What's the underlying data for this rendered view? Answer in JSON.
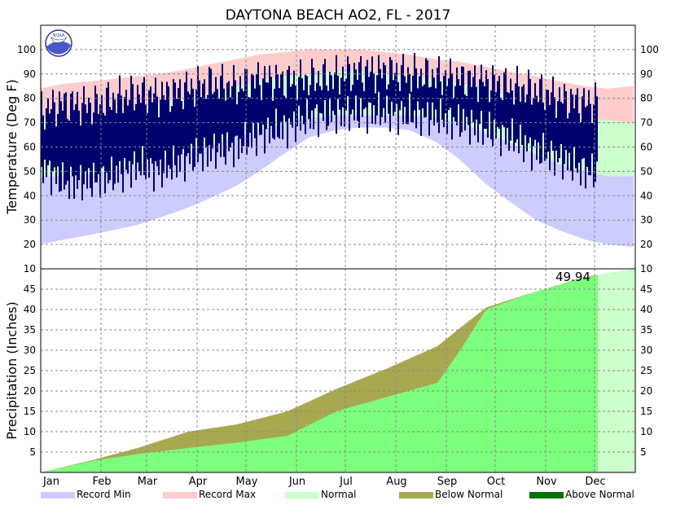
{
  "chart_data": [
    {
      "type": "area",
      "title": "DAYTONA BEACH AO2, FL - 2017",
      "ylabel": "Temperature (Deg F)",
      "ylim": [
        10,
        110
      ],
      "yticks": [
        20,
        30,
        40,
        50,
        60,
        70,
        80,
        90,
        100
      ],
      "months": [
        "Jan",
        "Feb",
        "Mar",
        "Apr",
        "May",
        "Jun",
        "Jul",
        "Aug",
        "Sep",
        "Oct",
        "Nov",
        "Dec"
      ],
      "grid": true,
      "x": [
        1,
        15,
        32,
        46,
        60,
        74,
        91,
        105,
        121,
        135,
        152,
        166,
        182,
        196,
        213,
        227,
        244,
        258,
        274,
        288,
        305,
        319,
        335,
        349,
        365
      ],
      "series": [
        {
          "name": "Record Max",
          "values": [
            84,
            86,
            87,
            88,
            89,
            90,
            92,
            94,
            96,
            98,
            99,
            100,
            100,
            100,
            99,
            98,
            96,
            95,
            93,
            91,
            89,
            87,
            85,
            84,
            85
          ]
        },
        {
          "name": "Normal",
          "values": [
            71,
            71,
            72,
            74,
            76,
            78,
            80,
            82,
            85,
            87,
            89,
            90,
            91,
            91,
            90,
            89,
            88,
            86,
            84,
            81,
            78,
            75,
            72,
            71,
            70
          ]
        },
        {
          "name": "Normal",
          "values": [
            48,
            48,
            49,
            51,
            53,
            55,
            58,
            61,
            64,
            67,
            70,
            72,
            73,
            73,
            73,
            73,
            72,
            70,
            66,
            62,
            57,
            53,
            50,
            48,
            48
          ]
        },
        {
          "name": "Record Min",
          "values": [
            20,
            22,
            24,
            26,
            28,
            31,
            35,
            39,
            44,
            50,
            58,
            64,
            67,
            68,
            68,
            67,
            62,
            55,
            45,
            38,
            30,
            26,
            22,
            20,
            19
          ]
        },
        {
          "name": "Observed High",
          "values": [
            75,
            78,
            77,
            80,
            82,
            81,
            84,
            86,
            85,
            88,
            87,
            88,
            89,
            91,
            91,
            90,
            89,
            88,
            87,
            85,
            83,
            80,
            78,
            80,
            72
          ]
        },
        {
          "name": "Observed Low",
          "values": [
            52,
            45,
            46,
            48,
            52,
            50,
            55,
            58,
            60,
            65,
            68,
            72,
            73,
            74,
            74,
            73,
            72,
            70,
            67,
            64,
            58,
            55,
            50,
            48,
            42
          ]
        }
      ]
    },
    {
      "type": "area",
      "ylabel": "Precipitation (Inches)",
      "ylim": [
        0,
        50
      ],
      "yticks": [
        5,
        10,
        15,
        20,
        25,
        30,
        35,
        40,
        45,
        50
      ],
      "top_label": "10",
      "annotation": "49.94",
      "grid": true,
      "x": [
        1,
        32,
        60,
        91,
        121,
        152,
        182,
        213,
        244,
        258,
        274,
        305,
        335,
        365
      ],
      "series": [
        {
          "name": "Normal",
          "values": [
            0.1,
            3.0,
            6.0,
            10.0,
            11.8,
            15.0,
            20.5,
            25.5,
            31.0,
            35.5,
            40.5,
            44.5,
            48.0,
            50.0
          ]
        },
        {
          "name": "Observed",
          "values": [
            0.1,
            2.8,
            4.5,
            6.0,
            7.3,
            9.0,
            15.0,
            18.5,
            22.0,
            30.0,
            40.0,
            44.5,
            47.8,
            49.94
          ]
        }
      ]
    }
  ],
  "legend": [
    {
      "label": "Record Min",
      "color": "#ccccff"
    },
    {
      "label": "Record Max",
      "color": "#ffcccc"
    },
    {
      "label": "Normal",
      "color": "#ccffcc"
    },
    {
      "label": "Below Normal",
      "color": "#a8a850"
    },
    {
      "label": "Above Normal",
      "color": "#087008"
    }
  ],
  "colors": {
    "record_min": "#ccccff",
    "record_max": "#ffcccc",
    "normal": "#ccffcc",
    "observed_temp": "#00006e",
    "precip_fill": "#7cff7c",
    "precip_normal_future": "#ccffcc",
    "below_normal": "#a8a850",
    "above_normal": "#087008"
  },
  "logo": {
    "text": "NOAA",
    "icon": "noaa-logo-icon"
  }
}
